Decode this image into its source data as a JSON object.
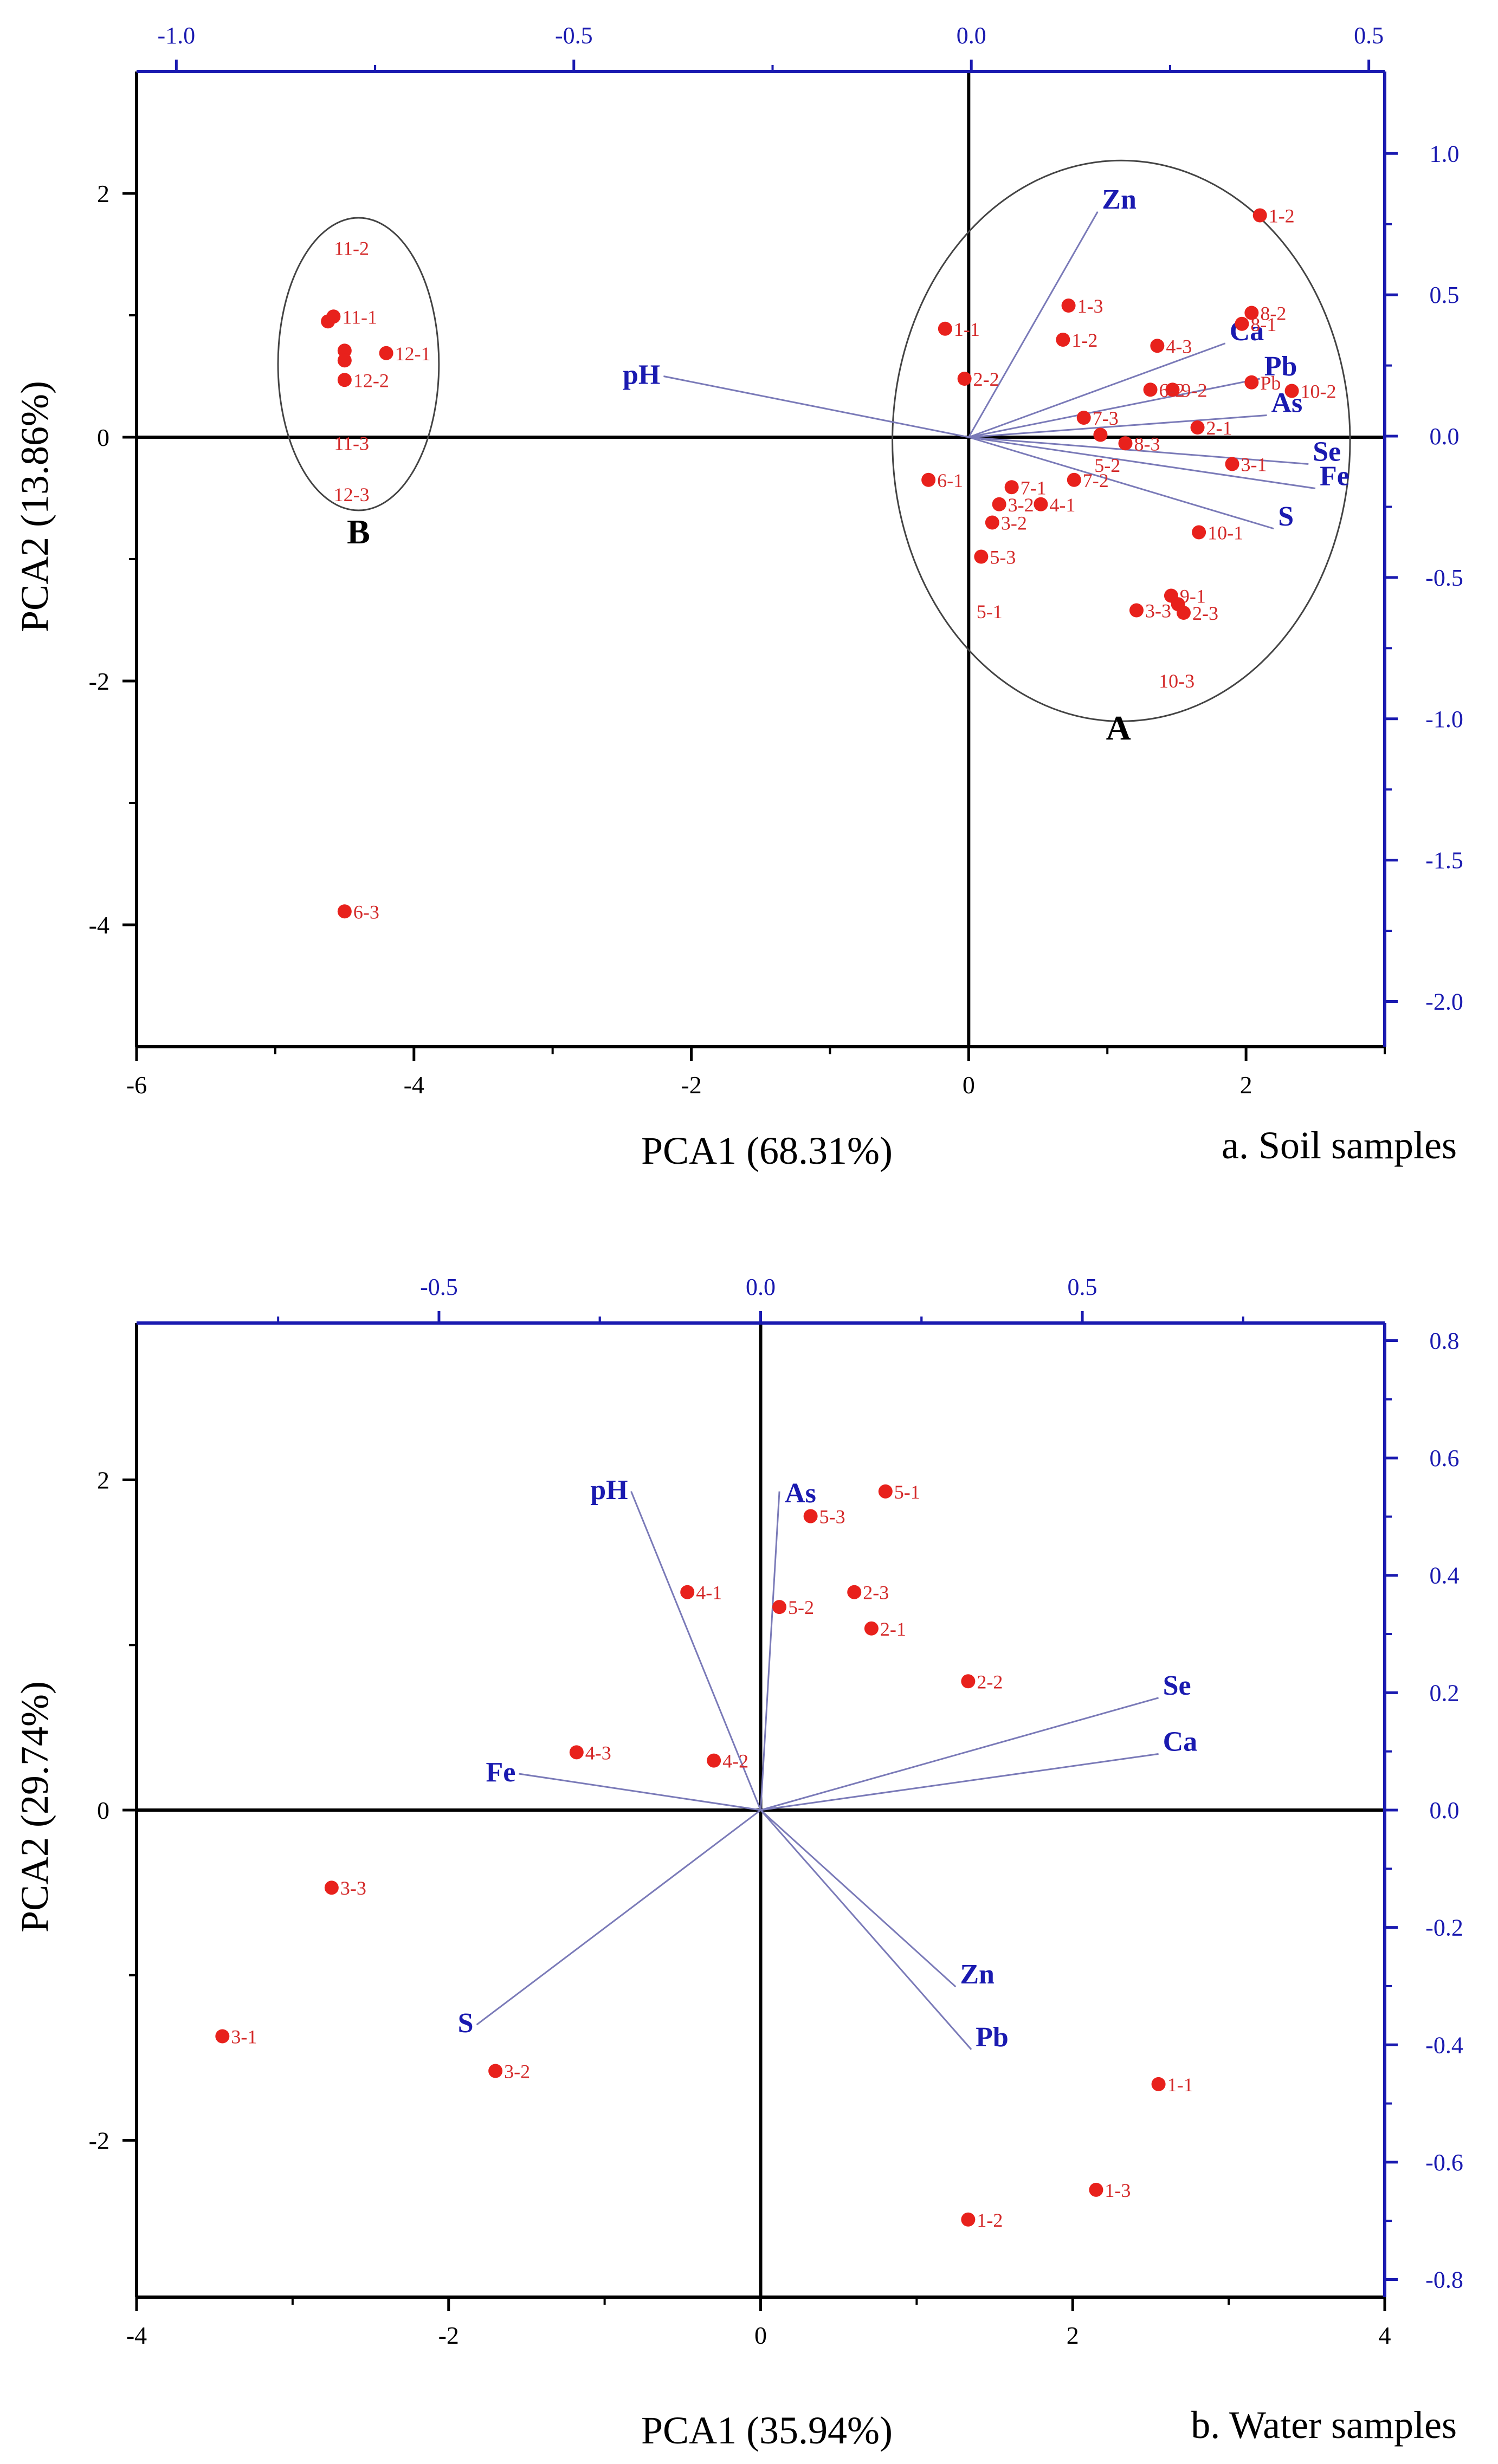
{
  "colors": {
    "axis": "#000000",
    "secondary_axis": "#1a1ab0",
    "point": "#e8211c",
    "point_label": "#d42a2a",
    "loading_line": "#7a7ab8",
    "loading_label": "#1a1ab0",
    "ellipse": "#444444"
  },
  "chart_data": [
    {
      "type": "scatter",
      "name": "soil",
      "caption": "a. Soil samples",
      "xlabel": "PCA1 (68.31%)",
      "ylabel": "PCA2 (13.86%)",
      "xlim": [
        -6,
        3
      ],
      "ylim": [
        -5,
        3
      ],
      "x_ticks": [
        -6,
        -4,
        -2,
        0,
        2
      ],
      "x_tick_labels": [
        "-6",
        "-4",
        "-2",
        "0",
        "2"
      ],
      "y_ticks": [
        -4,
        -2,
        0,
        2
      ],
      "y_tick_labels": [
        "-4",
        "-2",
        "0",
        "2"
      ],
      "top_axis": {
        "lim": [
          -1.05,
          0.52
        ],
        "ticks": [
          -1.0,
          -0.5,
          0.0,
          0.5
        ],
        "labels": [
          "-1.0",
          "-0.5",
          "0.0",
          "0.5"
        ]
      },
      "right_axis": {
        "lim": [
          -2.16,
          1.29
        ],
        "ticks": [
          1.0,
          0.5,
          0.0,
          -0.5,
          -1.0,
          -1.5,
          -2.0
        ],
        "labels": [
          "1.0",
          "0.5",
          "0.0",
          "-0.5",
          "-1.0",
          "-1.5",
          "-2.0"
        ]
      },
      "points": [
        {
          "x": 2.1,
          "y": 1.82,
          "label": "1-2"
        },
        {
          "x": 0.72,
          "y": 1.08,
          "label": "1-3"
        },
        {
          "x": -0.17,
          "y": 0.89,
          "label": "1-1"
        },
        {
          "x": 0.68,
          "y": 0.8,
          "label": "1-2"
        },
        {
          "x": 1.36,
          "y": 0.75,
          "label": "4-3"
        },
        {
          "x": 2.04,
          "y": 1.02,
          "label": "8-2"
        },
        {
          "x": 1.97,
          "y": 0.93,
          "label": "8-1"
        },
        {
          "x": -0.03,
          "y": 0.48,
          "label": "2-2"
        },
        {
          "x": 1.47,
          "y": 0.39,
          "label": "9-2"
        },
        {
          "x": 1.31,
          "y": 0.39,
          "label": "6-2"
        },
        {
          "x": 2.04,
          "y": 0.45,
          "label": "Pb"
        },
        {
          "x": 2.33,
          "y": 0.38,
          "label": "10-2"
        },
        {
          "x": 0.83,
          "y": 0.16,
          "label": "7-3"
        },
        {
          "x": 1.65,
          "y": 0.08,
          "label": "2-1"
        },
        {
          "x": 0.95,
          "y": 0.02,
          "label": ""
        },
        {
          "x": 1.13,
          "y": -0.05,
          "label": "8-3"
        },
        {
          "x": 1.9,
          "y": -0.22,
          "label": "3-1"
        },
        {
          "x": -0.29,
          "y": -0.35,
          "label": "6-1"
        },
        {
          "x": 0.31,
          "y": -0.41,
          "label": "7-1"
        },
        {
          "x": 0.76,
          "y": -0.35,
          "label": "7-2"
        },
        {
          "x": 0.22,
          "y": -0.55,
          "label": "3-2"
        },
        {
          "x": 0.52,
          "y": -0.55,
          "label": "4-1"
        },
        {
          "x": 0.17,
          "y": -0.7,
          "label": "3-2"
        },
        {
          "x": 1.66,
          "y": -0.78,
          "label": "10-1"
        },
        {
          "x": 0.09,
          "y": -0.98,
          "label": "5-3"
        },
        {
          "x": 1.46,
          "y": -1.3,
          "label": "9-1"
        },
        {
          "x": 1.51,
          "y": -1.37,
          "label": ""
        },
        {
          "x": 1.55,
          "y": -1.44,
          "label": "2-3"
        },
        {
          "x": 1.21,
          "y": -1.42,
          "label": "3-3"
        },
        {
          "x": -4.58,
          "y": 0.99,
          "label": "11-1"
        },
        {
          "x": -4.62,
          "y": 0.95,
          "label": ""
        },
        {
          "x": -4.5,
          "y": 0.71,
          "label": ""
        },
        {
          "x": -4.5,
          "y": 0.63,
          "label": ""
        },
        {
          "x": -4.5,
          "y": 0.47,
          "label": "12-2"
        },
        {
          "x": -4.2,
          "y": 0.69,
          "label": "12-1"
        },
        {
          "x": -4.5,
          "y": -3.89,
          "label": "6-3"
        }
      ],
      "extra_labels": [
        {
          "x": -4.45,
          "y": 1.55,
          "label": "11-2"
        },
        {
          "x": -4.45,
          "y": -0.05,
          "label": "11-3"
        },
        {
          "x": -4.45,
          "y": -0.47,
          "label": "12-3"
        },
        {
          "x": 1.0,
          "y": -0.23,
          "label": "5-2"
        },
        {
          "x": 0.15,
          "y": -1.43,
          "label": "5-1"
        },
        {
          "x": 1.5,
          "y": -2.0,
          "label": "10-3"
        }
      ],
      "loadings": [
        {
          "label": "Zn",
          "x": 0.93,
          "y": 1.85
        },
        {
          "label": "pH",
          "x": -2.2,
          "y": 0.5
        },
        {
          "label": "Ca",
          "x": 1.85,
          "y": 0.77
        },
        {
          "label": "Pb",
          "x": 2.1,
          "y": 0.48
        },
        {
          "label": "As",
          "x": 2.15,
          "y": 0.18
        },
        {
          "label": "Se",
          "x": 2.45,
          "y": -0.22
        },
        {
          "label": "Fe",
          "x": 2.5,
          "y": -0.42
        },
        {
          "label": "S",
          "x": 2.2,
          "y": -0.75
        }
      ],
      "groups": [
        {
          "label": "B",
          "cx": -4.4,
          "cy": 0.6,
          "rx": 0.58,
          "ry": 1.2,
          "lx": -4.4,
          "ly": -0.87
        },
        {
          "label": "A",
          "cx": 1.1,
          "cy": -0.03,
          "rx": 1.65,
          "ry": 2.3,
          "lx": 1.08,
          "ly": -2.48
        }
      ]
    },
    {
      "type": "scatter",
      "name": "water",
      "caption": "b. Water samples",
      "xlabel": "PCA1 (35.94%)",
      "ylabel": "PCA2 (29.74%)",
      "xlim": [
        -4,
        4
      ],
      "ylim": [
        -2.95,
        2.95
      ],
      "x_ticks": [
        -4,
        -2,
        0,
        2,
        4
      ],
      "x_tick_labels": [
        "-4",
        "-2",
        "0",
        "2",
        "4"
      ],
      "y_ticks": [
        -2,
        0,
        2
      ],
      "y_tick_labels": [
        "-2",
        "0",
        "2"
      ],
      "top_axis": {
        "lim": [
          -0.97,
          0.97
        ],
        "ticks": [
          -0.5,
          0.0,
          0.5
        ],
        "labels": [
          "-0.5",
          "0.0",
          "0.5"
        ]
      },
      "right_axis": {
        "lim": [
          -0.83,
          0.83
        ],
        "ticks": [
          0.8,
          0.6,
          0.4,
          0.2,
          0.0,
          -0.2,
          -0.4,
          -0.6,
          -0.8
        ],
        "labels": [
          "0.8",
          "0.6",
          "0.4",
          "0.2",
          "0.0",
          "-0.2",
          "-0.4",
          "-0.6",
          "-0.8"
        ]
      },
      "points": [
        {
          "x": 0.8,
          "y": 1.93,
          "label": "5-1"
        },
        {
          "x": 0.32,
          "y": 1.78,
          "label": "5-3"
        },
        {
          "x": -0.47,
          "y": 1.32,
          "label": "4-1"
        },
        {
          "x": 0.6,
          "y": 1.32,
          "label": "2-3"
        },
        {
          "x": 0.12,
          "y": 1.23,
          "label": "5-2"
        },
        {
          "x": 0.71,
          "y": 1.1,
          "label": "2-1"
        },
        {
          "x": 1.33,
          "y": 0.78,
          "label": "2-2"
        },
        {
          "x": -1.18,
          "y": 0.35,
          "label": "4-3"
        },
        {
          "x": -0.3,
          "y": 0.3,
          "label": "4-2"
        },
        {
          "x": -2.75,
          "y": -0.47,
          "label": "3-3"
        },
        {
          "x": -3.45,
          "y": -1.37,
          "label": "3-1"
        },
        {
          "x": -1.7,
          "y": -1.58,
          "label": "3-2"
        },
        {
          "x": 2.55,
          "y": -1.66,
          "label": "1-1"
        },
        {
          "x": 2.15,
          "y": -2.3,
          "label": "1-3"
        },
        {
          "x": 1.33,
          "y": -2.48,
          "label": "1-2"
        }
      ],
      "extra_labels": [],
      "loadings": [
        {
          "label": "pH",
          "x": -0.83,
          "y": 1.93
        },
        {
          "label": "As",
          "x": 0.12,
          "y": 1.93
        },
        {
          "label": "Se",
          "x": 2.55,
          "y": 0.68
        },
        {
          "label": "Ca",
          "x": 2.55,
          "y": 0.34
        },
        {
          "label": "Fe",
          "x": -1.55,
          "y": 0.22
        },
        {
          "label": "S",
          "x": -1.82,
          "y": -1.3
        },
        {
          "label": "Zn",
          "x": 1.25,
          "y": -1.07
        },
        {
          "label": "Pb",
          "x": 1.35,
          "y": -1.45
        }
      ],
      "groups": []
    }
  ]
}
